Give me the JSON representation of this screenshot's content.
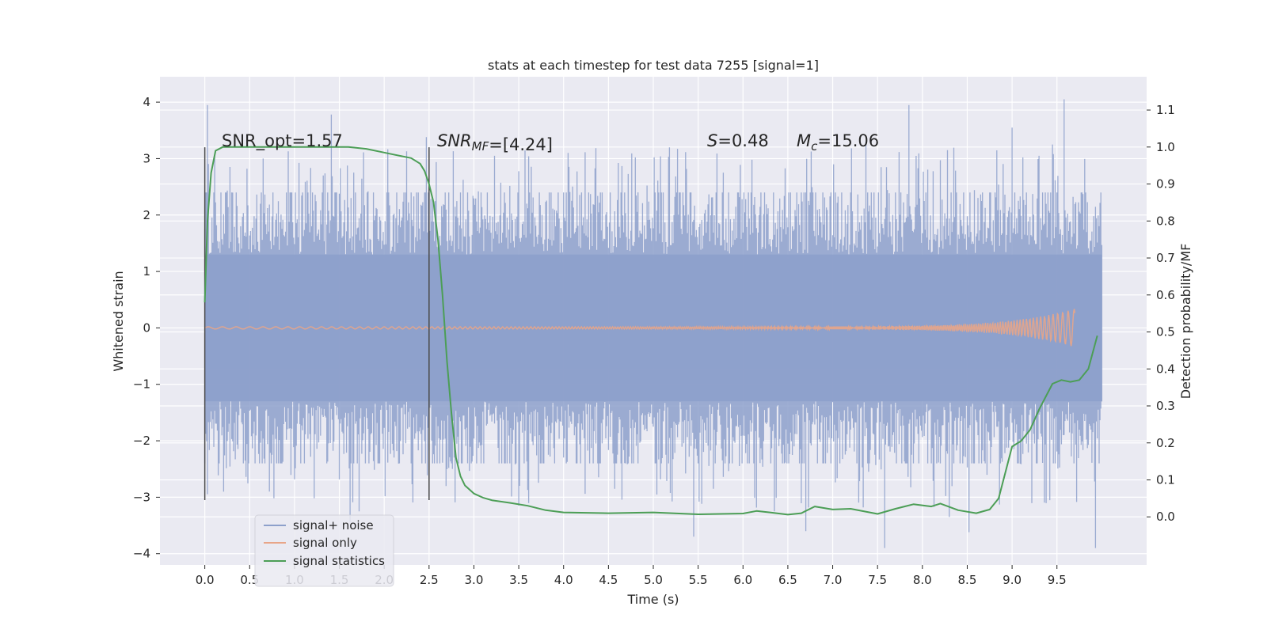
{
  "chart_data": {
    "type": "line",
    "title": "stats at each timestep for test data 7255 [signal=1]",
    "xlabel": "Time (s)",
    "ylabel_left": "Whitened strain",
    "ylabel_right": "Detection probability/MF",
    "xlim": [
      -0.5,
      10.5
    ],
    "ylim_left": [
      -4.2,
      4.45
    ],
    "ylim_right": [
      -0.13,
      1.19
    ],
    "x_ticks": [
      "0.0",
      "0.5",
      "1.0",
      "1.5",
      "2.0",
      "2.5",
      "3.0",
      "3.5",
      "4.0",
      "4.5",
      "5.0",
      "5.5",
      "6.0",
      "6.5",
      "7.0",
      "7.5",
      "8.0",
      "8.5",
      "9.0",
      "9.5"
    ],
    "y_ticks_left": [
      "4",
      "3",
      "2",
      "1",
      "0",
      "−1",
      "−2",
      "−3",
      "−4"
    ],
    "y_ticks_right": [
      "1.1",
      "1.0",
      "0.9",
      "0.8",
      "0.7",
      "0.6",
      "0.5",
      "0.4",
      "0.3",
      "0.2",
      "0.1",
      "0.0"
    ],
    "grid": true,
    "legend_position": "lower-left",
    "annotations": {
      "snr_opt": "SNR_opt=1.57",
      "snr_mf_prefix": "SNR",
      "snr_mf_sub": "MF",
      "snr_mf_suffix": "=[4.24]",
      "s_prefix": "S",
      "s_suffix": "=0.48",
      "mc_prefix": "M",
      "mc_sub": "c",
      "mc_suffix": "=15.06"
    },
    "vertical_markers": [
      0.0,
      2.5
    ],
    "series": [
      {
        "name": "signal+ noise",
        "color": "#8da0cb",
        "axis": "left",
        "x_range": [
          0.0,
          10.0
        ],
        "envelope_typical_max": 2.4,
        "envelope_typical_min": -2.4,
        "peak_values": [
          [
            0.03,
            3.95
          ],
          [
            1.41,
            3.78
          ],
          [
            0.65,
            3.0
          ],
          [
            1.62,
            -3.45
          ],
          [
            1.72,
            -3.25
          ],
          [
            2.47,
            3.38
          ],
          [
            3.23,
            3.05
          ],
          [
            3.5,
            -3.15
          ],
          [
            4.05,
            3.1
          ],
          [
            5.18,
            3.2
          ],
          [
            5.45,
            -3.7
          ],
          [
            6.35,
            -3.25
          ],
          [
            6.7,
            -3.6
          ],
          [
            7.37,
            3.3
          ],
          [
            7.58,
            -3.9
          ],
          [
            7.85,
            3.95
          ],
          [
            8.3,
            -3.35
          ],
          [
            8.52,
            -3.62
          ],
          [
            9.0,
            3.55
          ],
          [
            9.58,
            4.05
          ],
          [
            9.45,
            3.25
          ],
          [
            9.93,
            -3.9
          ]
        ]
      },
      {
        "name": "signal only",
        "color": "#e8a588",
        "axis": "left",
        "x_range": [
          0.0,
          9.7
        ],
        "peak_amplitude": 0.32
      },
      {
        "name": "signal statistics",
        "color": "#4c9e56",
        "axis": "right",
        "x": [
          0.0,
          0.03,
          0.07,
          0.12,
          0.2,
          0.4,
          0.8,
          1.2,
          1.6,
          1.8,
          2.0,
          2.1,
          2.2,
          2.3,
          2.4,
          2.45,
          2.5,
          2.55,
          2.6,
          2.65,
          2.7,
          2.75,
          2.8,
          2.85,
          2.9,
          3.0,
          3.1,
          3.2,
          3.4,
          3.6,
          3.8,
          4.0,
          4.5,
          5.0,
          5.5,
          6.0,
          6.15,
          6.3,
          6.5,
          6.65,
          6.8,
          7.0,
          7.2,
          7.5,
          7.7,
          7.9,
          8.1,
          8.2,
          8.4,
          8.6,
          8.75,
          8.85,
          9.0,
          9.1,
          9.2,
          9.3,
          9.45,
          9.55,
          9.65,
          9.75,
          9.85,
          9.95
        ],
        "y": [
          0.58,
          0.8,
          0.93,
          0.99,
          1.0,
          1.0,
          1.0,
          1.0,
          1.0,
          0.995,
          0.985,
          0.98,
          0.975,
          0.97,
          0.955,
          0.935,
          0.9,
          0.85,
          0.75,
          0.6,
          0.42,
          0.28,
          0.16,
          0.11,
          0.085,
          0.063,
          0.052,
          0.045,
          0.038,
          0.03,
          0.018,
          0.012,
          0.01,
          0.012,
          0.007,
          0.009,
          0.016,
          0.012,
          0.006,
          0.01,
          0.028,
          0.02,
          0.022,
          0.008,
          0.022,
          0.034,
          0.028,
          0.036,
          0.018,
          0.01,
          0.02,
          0.05,
          0.19,
          0.205,
          0.235,
          0.29,
          0.36,
          0.37,
          0.365,
          0.37,
          0.4,
          0.49
        ]
      }
    ]
  }
}
